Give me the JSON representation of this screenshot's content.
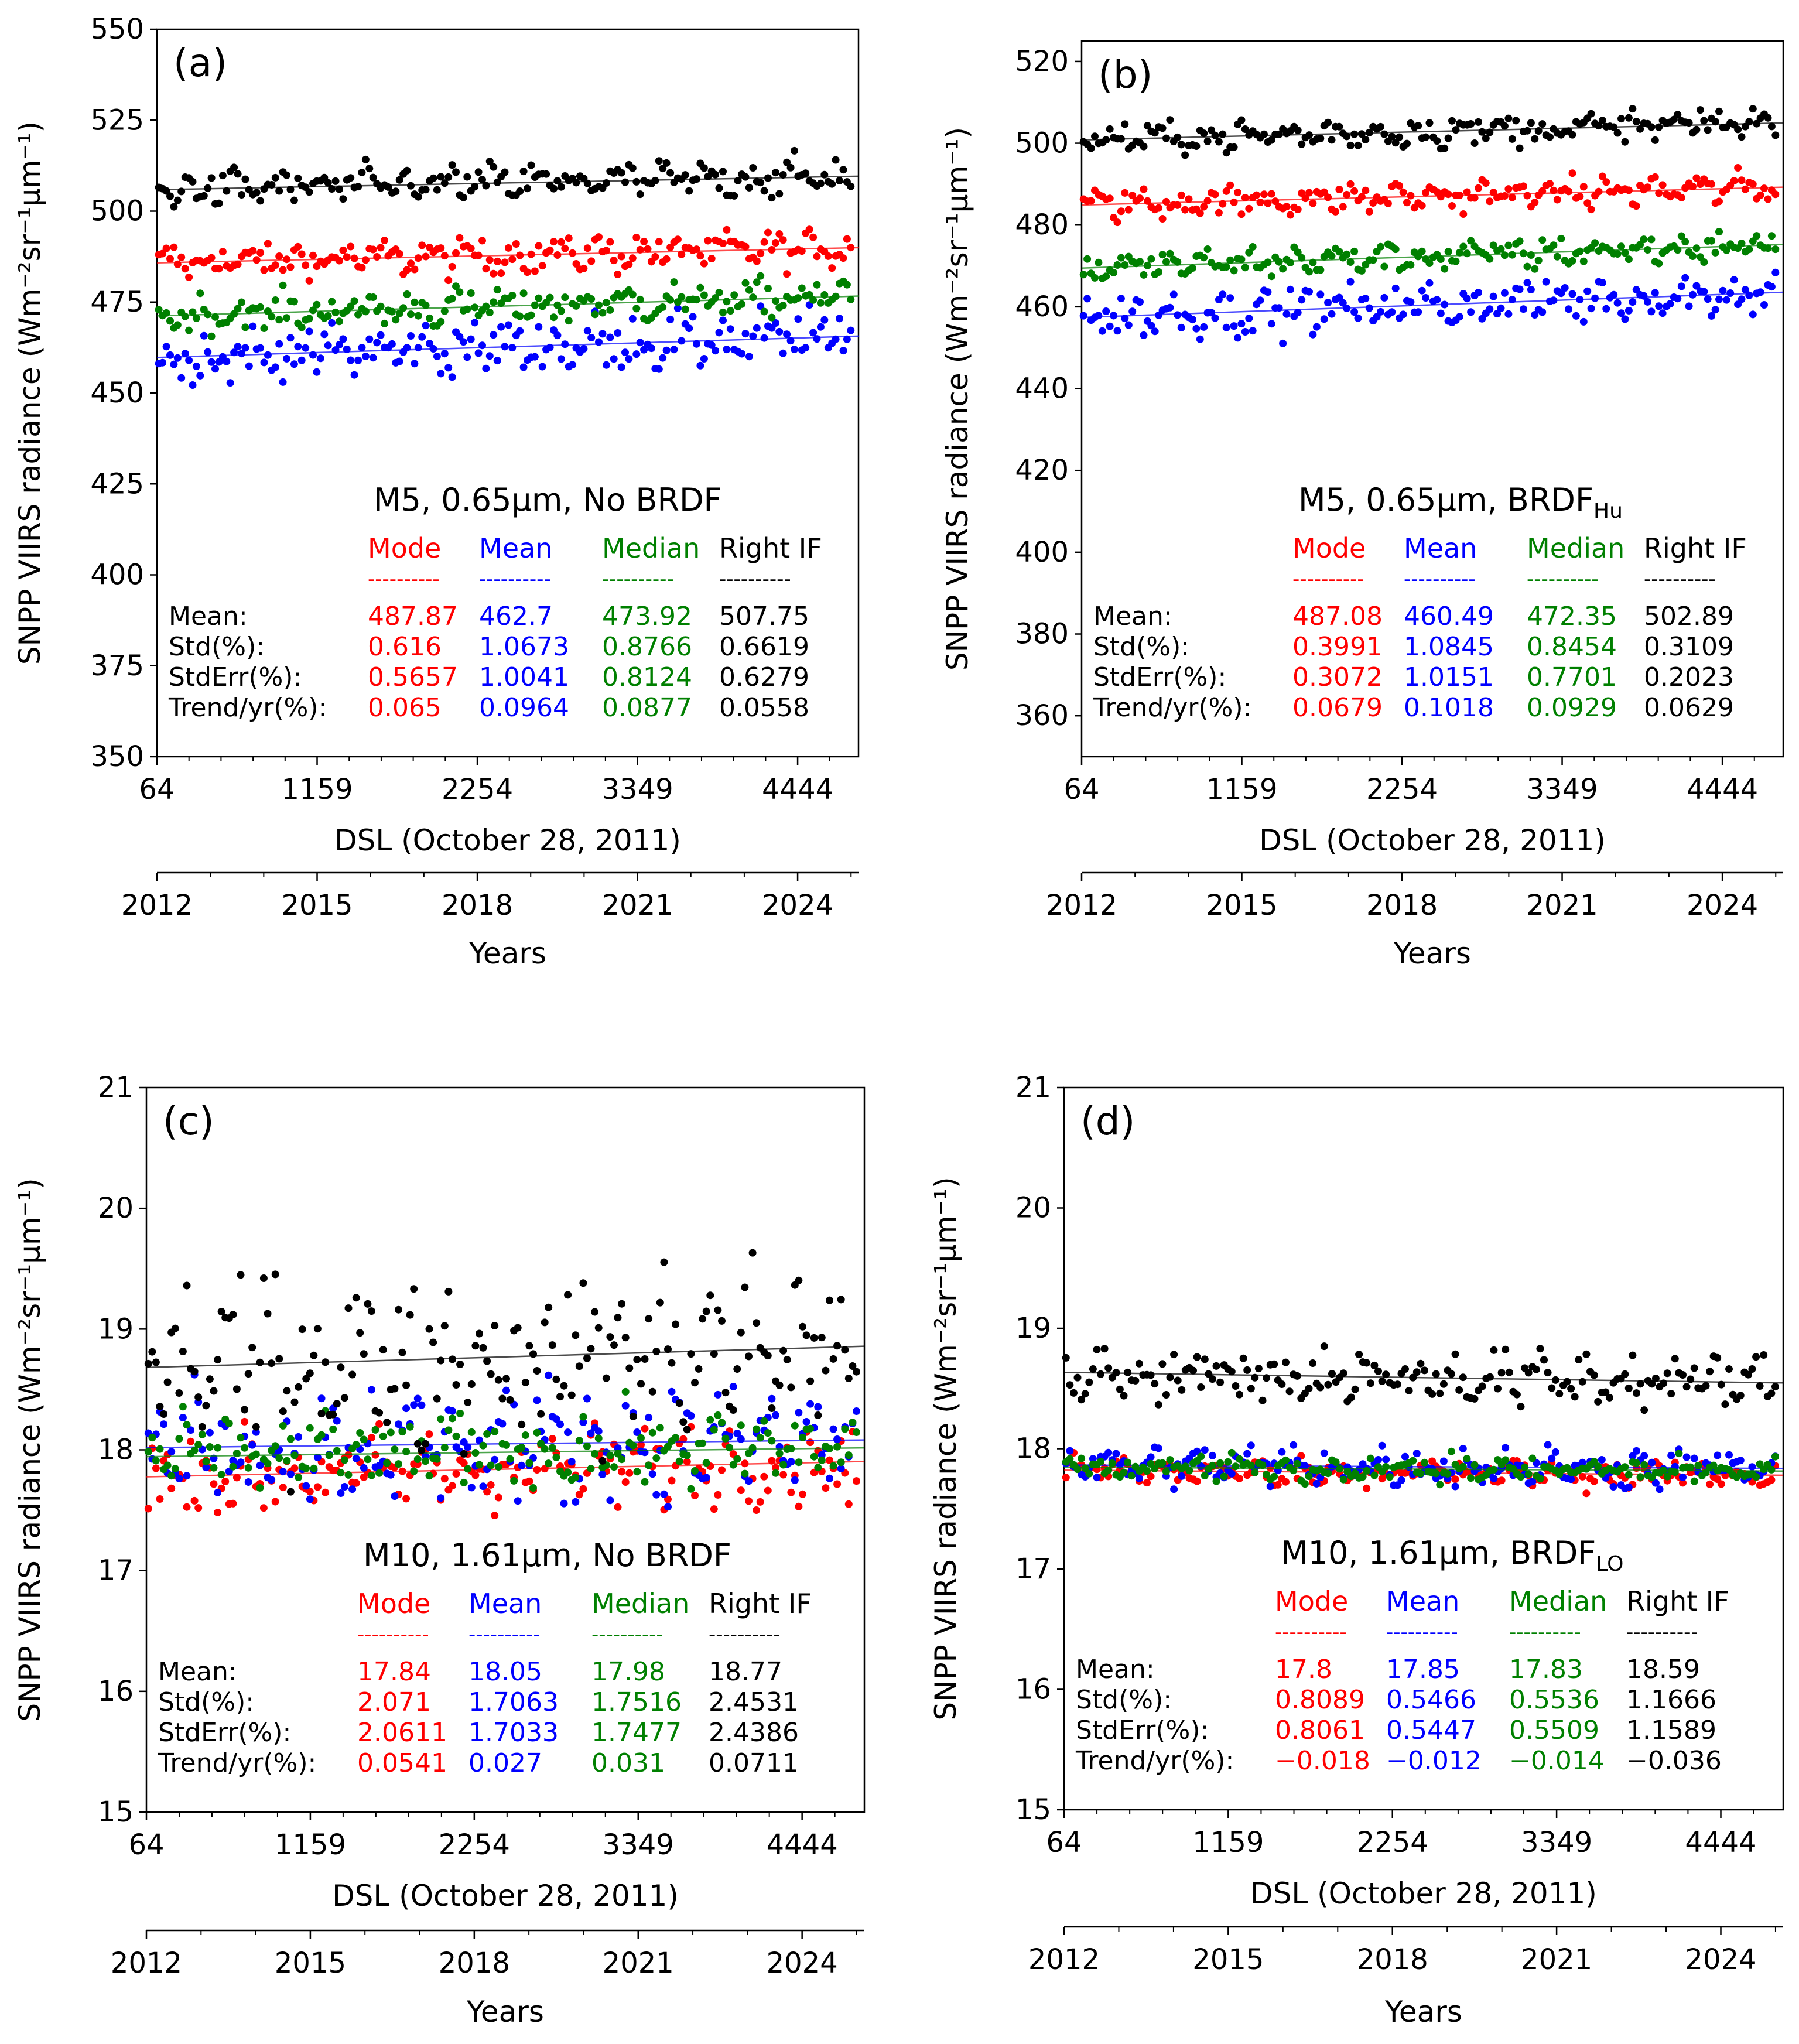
{
  "figure": {
    "ylabel": "SNPP VIIRS radiance (Wm⁻²sr⁻¹μm⁻¹)",
    "xlabel": "DSL (October 28, 2011)",
    "year_axis_label": "Years",
    "x_ticks": [
      64,
      1159,
      2254,
      3349,
      4444
    ],
    "x_tick_labels": [
      "64",
      "1159",
      "2254",
      "3349",
      "4444"
    ],
    "x_range": [
      64,
      4860
    ],
    "year_ticks": [
      "2012",
      "2015",
      "2018",
      "2021",
      "2024"
    ],
    "stats_columns": [
      "Mode",
      "Mean",
      "Median",
      "Right IF"
    ],
    "stats_rows": [
      "Mean:",
      "Std(%):",
      "StdErr(%):",
      "Trend/yr(%):"
    ],
    "dashes": "----------",
    "colors": {
      "mode": "#ff0000",
      "mean": "#0000ff",
      "median": "#008000",
      "right_if": "#000000"
    }
  },
  "chart_data": [
    {
      "type": "scatter",
      "panel": "(a)",
      "title": "M5, 0.65μm, No BRDF",
      "ylim": [
        350,
        550
      ],
      "yticks": [
        350,
        375,
        400,
        425,
        450,
        475,
        500,
        525,
        550
      ],
      "spread": 4,
      "series": [
        {
          "name": "Mode",
          "color": "#ff0000",
          "mean": 487.87,
          "trend_pct_per_yr": 0.065
        },
        {
          "name": "Mean",
          "color": "#0000ff",
          "mean": 462.7,
          "trend_pct_per_yr": 0.0964
        },
        {
          "name": "Median",
          "color": "#008000",
          "mean": 473.92,
          "trend_pct_per_yr": 0.0877
        },
        {
          "name": "Right IF",
          "color": "#000000",
          "mean": 507.75,
          "trend_pct_per_yr": 0.0558
        }
      ],
      "stats": [
        [
          "487.87",
          "462.7",
          "473.92",
          "507.75"
        ],
        [
          "0.616",
          "1.0673",
          "0.8766",
          "0.6619"
        ],
        [
          "0.5657",
          "1.0041",
          "0.8124",
          "0.6279"
        ],
        [
          "0.065",
          "0.0964",
          "0.0877",
          "0.0558"
        ]
      ]
    },
    {
      "type": "scatter",
      "panel": "(b)",
      "title": "M5, 0.65μm, BRDF",
      "title_sub": "Hu",
      "ylim": [
        350,
        525
      ],
      "yticks": [
        360,
        380,
        400,
        420,
        440,
        460,
        480,
        500,
        520
      ],
      "spread": 3,
      "series": [
        {
          "name": "Mode",
          "color": "#ff0000",
          "mean": 487.08,
          "trend_pct_per_yr": 0.0679
        },
        {
          "name": "Mean",
          "color": "#0000ff",
          "mean": 460.49,
          "trend_pct_per_yr": 0.1018
        },
        {
          "name": "Median",
          "color": "#008000",
          "mean": 472.35,
          "trend_pct_per_yr": 0.0929
        },
        {
          "name": "Right IF",
          "color": "#000000",
          "mean": 502.89,
          "trend_pct_per_yr": 0.0629
        }
      ],
      "stats": [
        [
          "487.08",
          "460.49",
          "472.35",
          "502.89"
        ],
        [
          "0.3991",
          "1.0845",
          "0.8454",
          "0.3109"
        ],
        [
          "0.3072",
          "1.0151",
          "0.7701",
          "0.2023"
        ],
        [
          "0.0679",
          "0.1018",
          "0.0929",
          "0.0629"
        ]
      ]
    },
    {
      "type": "scatter",
      "panel": "(c)",
      "title": "M10, 1.61μm, No BRDF",
      "ylim": [
        15,
        21
      ],
      "yticks": [
        15,
        16,
        17,
        18,
        19,
        20,
        21
      ],
      "spread": 0.25,
      "series": [
        {
          "name": "Mode",
          "color": "#ff0000",
          "mean": 17.84,
          "trend_pct_per_yr": 0.0541
        },
        {
          "name": "Mean",
          "color": "#0000ff",
          "mean": 18.05,
          "trend_pct_per_yr": 0.027
        },
        {
          "name": "Median",
          "color": "#008000",
          "mean": 17.98,
          "trend_pct_per_yr": 0.031
        },
        {
          "name": "Right IF",
          "color": "#000000",
          "mean": 18.77,
          "trend_pct_per_yr": 0.0711
        }
      ],
      "stats": [
        [
          "17.84",
          "18.05",
          "17.98",
          "18.77"
        ],
        [
          "2.071",
          "1.7063",
          "1.7516",
          "2.4531"
        ],
        [
          "2.0611",
          "1.7033",
          "1.7477",
          "2.4386"
        ],
        [
          "0.0541",
          "0.027",
          "0.031",
          "0.0711"
        ]
      ]
    },
    {
      "type": "scatter",
      "panel": "(d)",
      "title": "M10, 1.61μm, BRDF",
      "title_sub": "LO",
      "ylim": [
        15,
        21
      ],
      "yticks": [
        15,
        16,
        17,
        18,
        19,
        20,
        21
      ],
      "spread": 0.09,
      "series": [
        {
          "name": "Mode",
          "color": "#ff0000",
          "mean": 17.8,
          "trend_pct_per_yr": -0.018
        },
        {
          "name": "Mean",
          "color": "#0000ff",
          "mean": 17.85,
          "trend_pct_per_yr": -0.012
        },
        {
          "name": "Median",
          "color": "#008000",
          "mean": 17.83,
          "trend_pct_per_yr": -0.014
        },
        {
          "name": "Right IF",
          "color": "#000000",
          "mean": 18.59,
          "trend_pct_per_yr": -0.036
        }
      ],
      "stats": [
        [
          "17.8",
          "17.85",
          "17.83",
          "18.59"
        ],
        [
          "0.8089",
          "0.5466",
          "0.5536",
          "1.1666"
        ],
        [
          "0.8061",
          "0.5447",
          "0.5509",
          "1.1589"
        ],
        [
          "−0.018",
          "−0.012",
          "−0.014",
          "−0.036"
        ]
      ]
    }
  ]
}
